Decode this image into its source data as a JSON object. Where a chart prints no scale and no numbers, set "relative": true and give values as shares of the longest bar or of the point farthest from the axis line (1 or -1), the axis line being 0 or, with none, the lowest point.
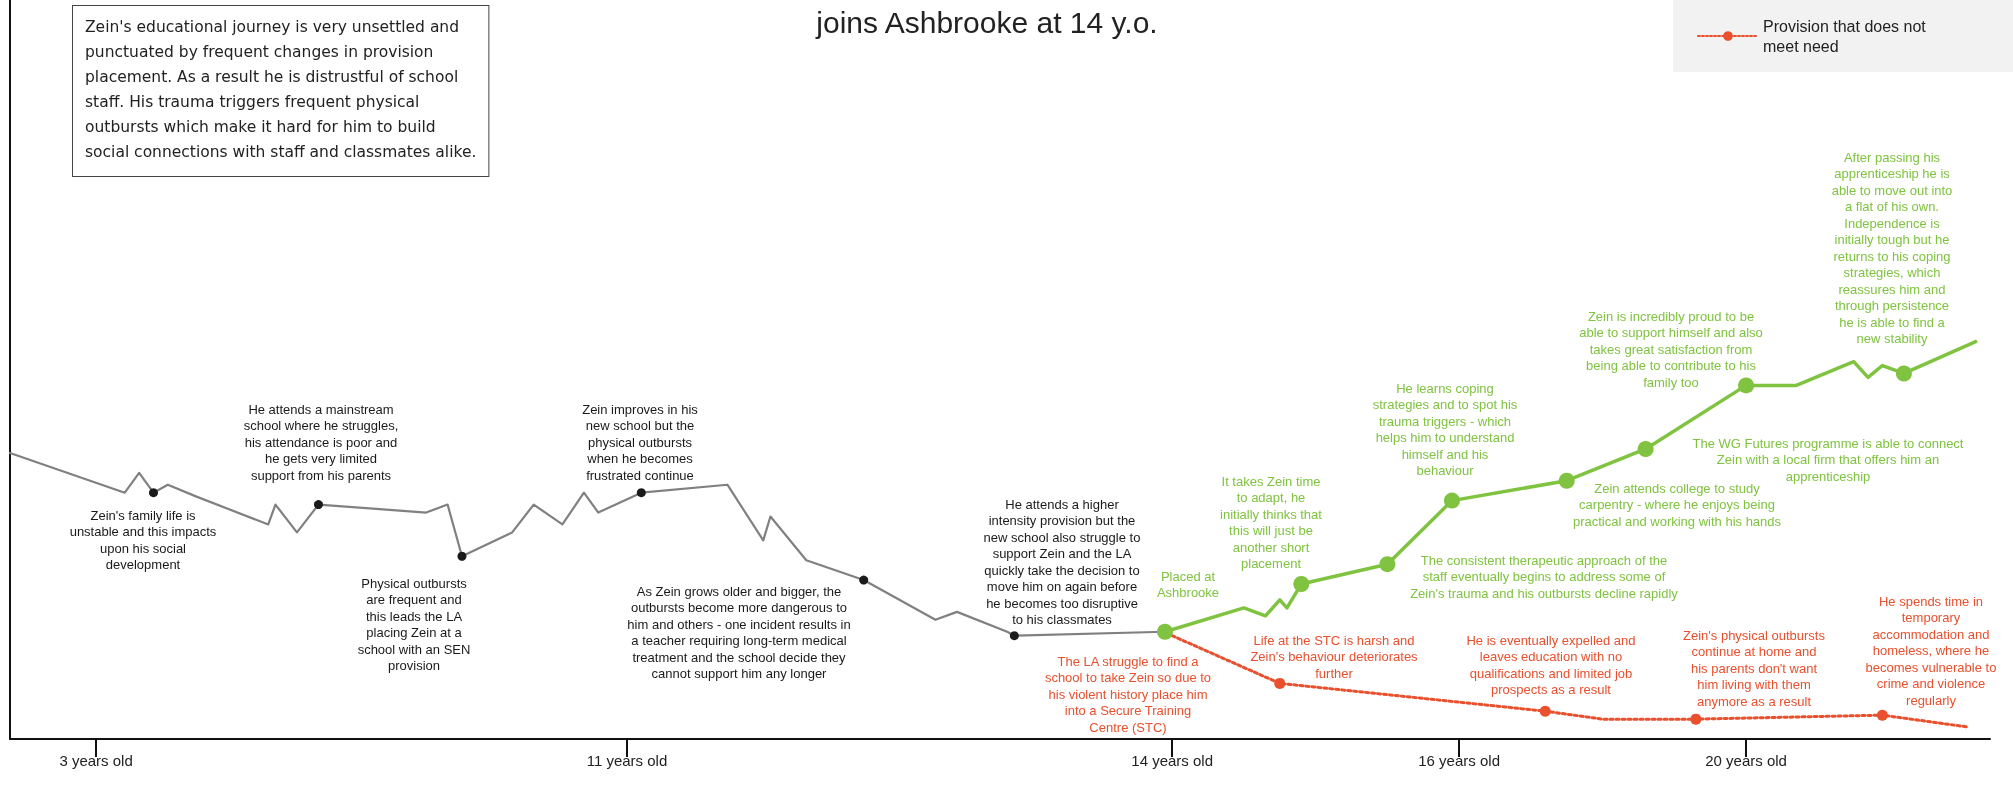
{
  "chart_data": {
    "type": "line",
    "title": "joins Ashbrooke at 14 y.o.",
    "relative": true,
    "legend": "top right",
    "marker": "none",
    "categories": [
      null,
      null,
      null,
      null,
      null,
      null,
      null,
      null,
      null,
      null,
      null,
      null,
      "3 years old",
      null,
      null,
      null,
      null,
      null,
      null,
      null,
      null,
      null,
      null,
      null,
      null,
      null,
      null,
      null,
      null,
      null,
      null,
      null,
      null,
      null,
      null,
      null,
      null,
      null,
      null,
      null,
      null,
      null,
      null,
      null,
      null,
      null,
      null,
      null,
      null,
      null,
      null,
      null,
      null,
      null,
      null,
      null,
      null,
      null,
      null,
      null,
      null,
      null,
      null,
      null,
      null,
      null,
      null,
      null,
      null,
      null,
      null,
      null,
      null,
      null,
      null,
      null,
      null,
      null,
      null,
      null,
      null,
      null,
      null,
      null,
      null,
      null,
      "11 years old",
      null,
      null,
      null,
      null,
      null,
      null,
      null,
      null,
      null,
      null,
      null,
      null,
      null,
      null,
      null,
      null,
      null,
      null,
      null,
      null,
      null,
      null,
      null,
      null,
      null,
      null,
      null,
      null,
      null,
      null,
      null,
      null,
      null,
      null,
      null,
      null,
      null,
      null,
      null,
      null,
      null,
      null,
      null,
      null,
      null,
      null,
      null,
      null,
      null,
      null,
      null,
      null,
      null,
      null,
      null,
      null,
      null,
      null,
      null,
      null,
      null,
      null,
      null,
      null,
      null,
      null,
      null,
      null,
      null,
      null,
      null,
      null,
      null,
      null,
      null,
      "14 years old",
      null,
      null,
      null,
      null,
      null,
      null,
      null,
      null,
      null,
      null,
      null,
      null,
      null,
      null,
      null,
      null,
      null,
      null,
      null,
      null,
      null,
      null,
      null,
      null,
      null,
      null,
      null,
      null,
      null,
      null,
      null,
      null,
      null,
      null,
      null,
      null,
      null,
      null,
      null,
      "16 years old",
      null,
      null,
      null,
      null,
      null,
      null,
      null,
      null,
      null,
      null,
      null,
      null,
      null,
      null,
      null,
      null,
      null,
      null,
      null,
      null,
      null,
      null,
      null,
      null,
      null,
      null,
      null,
      null,
      null,
      null,
      null,
      null,
      null,
      null,
      null,
      null,
      null,
      null,
      null,
      "20 years old",
      null,
      null,
      null,
      null,
      null,
      null,
      null,
      null,
      null,
      null,
      null,
      null,
      null,
      null,
      null,
      null,
      null,
      null,
      null,
      null,
      null,
      null,
      null,
      null,
      null,
      null,
      null,
      null,
      null,
      null,
      null,
      null,
      null,
      null
    ],
    "series": [
      {
        "color": "#808080",
        "line_style": "solid",
        "values": [
          0.72,
          null,
          null,
          null,
          null,
          null,
          null,
          null,
          null,
          null,
          null,
          null,
          null,
          null,
          null,
          null,
          0.62,
          null,
          0.67,
          null,
          0.62,
          null,
          0.64,
          null,
          null,
          null,
          0.61,
          null,
          null,
          null,
          null,
          null,
          null,
          null,
          null,
          null,
          0.54,
          0.59,
          null,
          null,
          0.52,
          null,
          null,
          0.59,
          null,
          null,
          null,
          null,
          null,
          null,
          null,
          null,
          null,
          null,
          null,
          null,
          null,
          null,
          0.57,
          null,
          null,
          0.59,
          null,
          0.46,
          null,
          null,
          null,
          null,
          null,
          null,
          0.52,
          null,
          null,
          0.59,
          null,
          null,
          null,
          0.54,
          null,
          null,
          0.62,
          null,
          0.57,
          null,
          null,
          null,
          null,
          null,
          0.62,
          null,
          null,
          null,
          null,
          null,
          null,
          null,
          null,
          null,
          null,
          null,
          0.64,
          null,
          null,
          null,
          null,
          0.5,
          0.56,
          null,
          null,
          null,
          null,
          0.45,
          null,
          null,
          null,
          null,
          null,
          null,
          null,
          0.4,
          null,
          null,
          null,
          null,
          null,
          null,
          null,
          null,
          null,
          0.3,
          null,
          null,
          0.32,
          null,
          null,
          null,
          null,
          null,
          null,
          0.27,
          0.26,
          null,
          null,
          null,
          null,
          null,
          null,
          null,
          null,
          null,
          null,
          null,
          null,
          null,
          null,
          null,
          null,
          null,
          null,
          null,
          null,
          0.27,
          null,
          null,
          null,
          null,
          null,
          null,
          null,
          null,
          null,
          null,
          null,
          null,
          null,
          null,
          null,
          null,
          null,
          null,
          null,
          null,
          null,
          null,
          null,
          null,
          null,
          null,
          null,
          null,
          null,
          null,
          null,
          null,
          null,
          null,
          null,
          null,
          null,
          null,
          null,
          null,
          null,
          null,
          null,
          null,
          null,
          null,
          null,
          null,
          null,
          null,
          null,
          null,
          null,
          null,
          null,
          null,
          null,
          null,
          null,
          null,
          null,
          null,
          null,
          null,
          null,
          null,
          null,
          null,
          null,
          null,
          null,
          null,
          null,
          null,
          null,
          null,
          null,
          null,
          null,
          null,
          null,
          null,
          null,
          null,
          null,
          null,
          null,
          null,
          null,
          null,
          null,
          null,
          null,
          null,
          null,
          null,
          null,
          null,
          null,
          null,
          null,
          null,
          null,
          null,
          null,
          null,
          null,
          null,
          null,
          null,
          null,
          null,
          null,
          null,
          null
        ]
      },
      {
        "name": "Provision that does not meet need",
        "color": "#e8502e",
        "line_style": "dotted",
        "values": [
          null,
          null,
          null,
          null,
          null,
          null,
          null,
          null,
          null,
          null,
          null,
          null,
          null,
          null,
          null,
          null,
          null,
          null,
          null,
          null,
          null,
          null,
          null,
          null,
          null,
          null,
          null,
          null,
          null,
          null,
          null,
          null,
          null,
          null,
          null,
          null,
          null,
          null,
          null,
          null,
          null,
          null,
          null,
          null,
          null,
          null,
          null,
          null,
          null,
          null,
          null,
          null,
          null,
          null,
          null,
          null,
          null,
          null,
          null,
          null,
          null,
          null,
          null,
          null,
          null,
          null,
          null,
          null,
          null,
          null,
          null,
          null,
          null,
          null,
          null,
          null,
          null,
          null,
          null,
          null,
          null,
          null,
          null,
          null,
          null,
          null,
          null,
          null,
          null,
          null,
          null,
          null,
          null,
          null,
          null,
          null,
          null,
          null,
          null,
          null,
          null,
          null,
          null,
          null,
          null,
          null,
          null,
          null,
          null,
          null,
          null,
          null,
          null,
          null,
          null,
          null,
          null,
          null,
          null,
          null,
          null,
          null,
          null,
          null,
          null,
          null,
          null,
          null,
          null,
          null,
          null,
          null,
          null,
          null,
          null,
          null,
          null,
          null,
          null,
          null,
          null,
          null,
          null,
          null,
          null,
          null,
          null,
          null,
          null,
          null,
          null,
          null,
          null,
          null,
          null,
          null,
          null,
          null,
          null,
          null,
          null,
          null,
          0.26,
          null,
          null,
          null,
          null,
          null,
          null,
          null,
          null,
          null,
          null,
          null,
          null,
          null,
          null,
          0.14,
          null,
          null,
          null,
          null,
          null,
          null,
          null,
          null,
          null,
          null,
          null,
          null,
          null,
          null,
          null,
          null,
          null,
          null,
          null,
          null,
          null,
          null,
          null,
          null,
          null,
          null,
          null,
          null,
          null,
          null,
          null,
          null,
          null,
          null,
          null,
          null,
          0.07,
          null,
          null,
          null,
          null,
          null,
          null,
          null,
          0.05,
          null,
          null,
          null,
          null,
          null,
          null,
          null,
          null,
          null,
          null,
          null,
          null,
          0.05,
          null,
          null,
          null,
          null,
          null,
          null,
          null,
          null,
          null,
          null,
          null,
          null,
          null,
          null,
          null,
          null,
          null,
          null,
          null,
          null,
          null,
          null,
          null,
          null,
          null,
          0.06,
          null,
          null,
          null,
          null,
          null,
          null,
          null,
          null,
          null,
          null,
          null,
          0.03,
          null,
          null,
          null
        ]
      },
      {
        "color": "#80c341",
        "line_style": "solid",
        "values": [
          null,
          null,
          null,
          null,
          null,
          null,
          null,
          null,
          null,
          null,
          null,
          null,
          null,
          null,
          null,
          null,
          null,
          null,
          null,
          null,
          null,
          null,
          null,
          null,
          null,
          null,
          null,
          null,
          null,
          null,
          null,
          null,
          null,
          null,
          null,
          null,
          null,
          null,
          null,
          null,
          null,
          null,
          null,
          null,
          null,
          null,
          null,
          null,
          null,
          null,
          null,
          null,
          null,
          null,
          null,
          null,
          null,
          null,
          null,
          null,
          null,
          null,
          null,
          null,
          null,
          null,
          null,
          null,
          null,
          null,
          null,
          null,
          null,
          null,
          null,
          null,
          null,
          null,
          null,
          null,
          null,
          null,
          null,
          null,
          null,
          null,
          null,
          null,
          null,
          null,
          null,
          null,
          null,
          null,
          null,
          null,
          null,
          null,
          null,
          null,
          null,
          null,
          null,
          null,
          null,
          null,
          null,
          null,
          null,
          null,
          null,
          null,
          null,
          null,
          null,
          null,
          null,
          null,
          null,
          null,
          null,
          null,
          null,
          null,
          null,
          null,
          null,
          null,
          null,
          null,
          null,
          null,
          null,
          null,
          null,
          null,
          null,
          null,
          null,
          null,
          null,
          null,
          null,
          null,
          null,
          null,
          null,
          null,
          null,
          null,
          null,
          null,
          null,
          null,
          null,
          null,
          null,
          null,
          null,
          null,
          null,
          0.27,
          null,
          null,
          null,
          null,
          null,
          null,
          null,
          null,
          null,
          null,
          0.33,
          null,
          null,
          0.31,
          null,
          0.35,
          0.33,
          null,
          0.39,
          null,
          null,
          null,
          null,
          null,
          null,
          null,
          null,
          null,
          null,
          null,
          0.44,
          null,
          null,
          null,
          null,
          null,
          null,
          null,
          null,
          0.6,
          null,
          null,
          null,
          null,
          null,
          null,
          null,
          null,
          null,
          null,
          null,
          null,
          null,
          null,
          null,
          0.65,
          null,
          null,
          null,
          null,
          null,
          null,
          null,
          null,
          null,
          null,
          0.73,
          null,
          null,
          null,
          null,
          null,
          null,
          null,
          null,
          null,
          null,
          null,
          null,
          null,
          0.89,
          null,
          null,
          null,
          null,
          null,
          null,
          0.89,
          null,
          null,
          null,
          null,
          null,
          null,
          null,
          0.95,
          null,
          0.91,
          null,
          0.94,
          null,
          null,
          0.92,
          null,
          null,
          null,
          null,
          null,
          null,
          null,
          null,
          null,
          1.0,
          null,
          null
        ]
      },
      {
        "type": "scatter",
        "marker": "circle",
        "color": "#1a1a1a",
        "values": [
          null,
          null,
          null,
          null,
          null,
          null,
          null,
          null,
          null,
          null,
          null,
          null,
          null,
          null,
          null,
          null,
          null,
          null,
          null,
          null,
          0.62,
          null,
          null,
          null,
          null,
          null,
          null,
          null,
          null,
          null,
          null,
          null,
          null,
          null,
          null,
          null,
          null,
          null,
          null,
          null,
          null,
          null,
          null,
          0.59,
          null,
          null,
          null,
          null,
          null,
          null,
          null,
          null,
          null,
          null,
          null,
          null,
          null,
          null,
          null,
          null,
          null,
          null,
          null,
          0.46,
          null,
          null,
          null,
          null,
          null,
          null,
          null,
          null,
          null,
          null,
          null,
          null,
          null,
          null,
          null,
          null,
          null,
          null,
          null,
          null,
          null,
          null,
          null,
          null,
          0.62,
          null,
          null,
          null,
          null,
          null,
          null,
          null,
          null,
          null,
          null,
          null,
          null,
          null,
          null,
          null,
          null,
          null,
          null,
          null,
          null,
          null,
          null,
          null,
          null,
          null,
          null,
          null,
          null,
          null,
          null,
          0.4,
          null,
          null,
          null,
          null,
          null,
          null,
          null,
          null,
          null,
          null,
          null,
          null,
          null,
          null,
          null,
          null,
          null,
          null,
          null,
          null,
          0.26,
          null,
          null,
          null,
          null,
          null,
          null,
          null,
          null,
          null,
          null,
          null,
          null,
          null,
          null,
          null,
          null,
          null,
          null,
          null,
          null,
          null,
          null,
          null,
          null,
          null,
          null,
          null,
          null,
          null,
          null,
          null,
          null,
          null,
          null,
          null,
          null,
          null,
          null,
          null,
          null,
          null,
          null,
          null,
          null,
          null,
          null,
          null,
          null,
          null,
          null,
          null,
          null,
          null,
          null,
          null,
          null,
          null,
          null,
          null,
          null,
          null,
          null,
          null,
          null,
          null,
          null,
          null,
          null,
          null,
          null,
          null,
          null,
          null,
          null,
          null,
          null,
          null,
          null,
          null,
          null,
          null,
          null,
          null,
          null,
          null,
          null,
          null,
          null,
          null,
          null,
          null,
          null,
          null,
          null,
          null,
          null,
          null,
          null,
          null,
          null,
          null,
          null,
          null,
          null,
          null,
          null,
          null,
          null,
          null,
          null,
          null,
          null,
          null,
          null,
          null,
          null,
          null,
          null,
          null,
          null,
          null,
          null,
          null,
          null,
          null,
          null,
          null,
          null,
          null,
          null,
          null,
          null,
          null,
          null,
          null,
          null
        ]
      },
      {
        "type": "scatter",
        "marker": "circle",
        "color": "#e8502e",
        "values": [
          null,
          null,
          null,
          null,
          null,
          null,
          null,
          null,
          null,
          null,
          null,
          null,
          null,
          null,
          null,
          null,
          null,
          null,
          null,
          null,
          null,
          null,
          null,
          null,
          null,
          null,
          null,
          null,
          null,
          null,
          null,
          null,
          null,
          null,
          null,
          null,
          null,
          null,
          null,
          null,
          null,
          null,
          null,
          null,
          null,
          null,
          null,
          null,
          null,
          null,
          null,
          null,
          null,
          null,
          null,
          null,
          null,
          null,
          null,
          null,
          null,
          null,
          null,
          null,
          null,
          null,
          null,
          null,
          null,
          null,
          null,
          null,
          null,
          null,
          null,
          null,
          null,
          null,
          null,
          null,
          null,
          null,
          null,
          null,
          null,
          null,
          null,
          null,
          null,
          null,
          null,
          null,
          null,
          null,
          null,
          null,
          null,
          null,
          null,
          null,
          null,
          null,
          null,
          null,
          null,
          null,
          null,
          null,
          null,
          null,
          null,
          null,
          null,
          null,
          null,
          null,
          null,
          null,
          null,
          null,
          null,
          null,
          null,
          null,
          null,
          null,
          null,
          null,
          null,
          null,
          null,
          null,
          null,
          null,
          null,
          null,
          null,
          null,
          null,
          null,
          null,
          null,
          null,
          null,
          null,
          null,
          null,
          null,
          null,
          null,
          null,
          null,
          null,
          null,
          null,
          null,
          null,
          null,
          null,
          null,
          null,
          null,
          null,
          null,
          null,
          null,
          null,
          null,
          null,
          null,
          null,
          null,
          null,
          null,
          null,
          null,
          null,
          0.14,
          null,
          null,
          null,
          null,
          null,
          null,
          null,
          null,
          null,
          null,
          null,
          null,
          null,
          null,
          null,
          null,
          null,
          null,
          null,
          null,
          null,
          null,
          null,
          null,
          null,
          null,
          null,
          null,
          null,
          null,
          null,
          null,
          null,
          null,
          null,
          null,
          0.07,
          null,
          null,
          null,
          null,
          null,
          null,
          null,
          null,
          null,
          null,
          null,
          null,
          null,
          null,
          null,
          null,
          null,
          null,
          null,
          null,
          0.05,
          null,
          null,
          null,
          null,
          null,
          null,
          null,
          null,
          null,
          null,
          null,
          null,
          null,
          null,
          null,
          null,
          null,
          null,
          null,
          null,
          null,
          null,
          null,
          null,
          null,
          0.06,
          null,
          null,
          null,
          null,
          null,
          null,
          null,
          null,
          null,
          null,
          null,
          null,
          null,
          null,
          null
        ]
      },
      {
        "type": "scatter",
        "marker": "circle",
        "color": "#80c341",
        "values": [
          null,
          null,
          null,
          null,
          null,
          null,
          null,
          null,
          null,
          null,
          null,
          null,
          null,
          null,
          null,
          null,
          null,
          null,
          null,
          null,
          null,
          null,
          null,
          null,
          null,
          null,
          null,
          null,
          null,
          null,
          null,
          null,
          null,
          null,
          null,
          null,
          null,
          null,
          null,
          null,
          null,
          null,
          null,
          null,
          null,
          null,
          null,
          null,
          null,
          null,
          null,
          null,
          null,
          null,
          null,
          null,
          null,
          null,
          null,
          null,
          null,
          null,
          null,
          null,
          null,
          null,
          null,
          null,
          null,
          null,
          null,
          null,
          null,
          null,
          null,
          null,
          null,
          null,
          null,
          null,
          null,
          null,
          null,
          null,
          null,
          null,
          null,
          null,
          null,
          null,
          null,
          null,
          null,
          null,
          null,
          null,
          null,
          null,
          null,
          null,
          null,
          null,
          null,
          null,
          null,
          null,
          null,
          null,
          null,
          null,
          null,
          null,
          null,
          null,
          null,
          null,
          null,
          null,
          null,
          null,
          null,
          null,
          null,
          null,
          null,
          null,
          null,
          null,
          null,
          null,
          null,
          null,
          null,
          null,
          null,
          null,
          null,
          null,
          null,
          null,
          null,
          null,
          null,
          null,
          null,
          null,
          null,
          null,
          null,
          null,
          null,
          null,
          null,
          null,
          null,
          null,
          null,
          null,
          null,
          null,
          null,
          0.27,
          null,
          null,
          null,
          null,
          null,
          null,
          null,
          null,
          null,
          null,
          null,
          null,
          null,
          null,
          null,
          null,
          null,
          null,
          0.39,
          null,
          null,
          null,
          null,
          null,
          null,
          null,
          null,
          null,
          null,
          null,
          0.44,
          null,
          null,
          null,
          null,
          null,
          null,
          null,
          null,
          0.6,
          null,
          null,
          null,
          null,
          null,
          null,
          null,
          null,
          null,
          null,
          null,
          null,
          null,
          null,
          null,
          0.65,
          null,
          null,
          null,
          null,
          null,
          null,
          null,
          null,
          null,
          null,
          0.73,
          null,
          null,
          null,
          null,
          null,
          null,
          null,
          null,
          null,
          null,
          null,
          null,
          null,
          0.89,
          null,
          null,
          null,
          null,
          null,
          null,
          null,
          null,
          null,
          null,
          null,
          null,
          null,
          null,
          null,
          null,
          null,
          null,
          null,
          null,
          null,
          0.92,
          null,
          null,
          null,
          null,
          null,
          null,
          null,
          null,
          null,
          null,
          null,
          null
        ]
      }
    ],
    "annotations": [
      "Zein's educational journey is very unsettled and\npunctuated by frequent changes in provision\nplacement. As a result he is distrustful of school\nstaff. His trauma triggers frequent physical\noutbursts which make it hard for him to build\nsocial connections with staff and classmates alike.",
      "Zein's family life is\nunstable and this impacts\nupon his social\ndevelopment",
      "He attends a mainstream\nschool where he struggles,\nhis attendance is poor and\nhe gets very limited\nsupport from his parents",
      "Physical outbursts\nare frequent and\nthis leads the LA\nplacing Zein at a\nschool with an SEN\nprovision",
      "Zein improves in his\nnew school but the\nphysical outbursts\nwhen he becomes\nfrustrated continue",
      "As Zein grows older and bigger, the\noutbursts become more dangerous to\nhim and others - one incident results in\na teacher requiring long-term medical\ntreatment and the school decide they\ncannot support him any longer",
      "He attends a higher\nintensity provision but the\nnew school also struggle to\nsupport Zein and the LA\nquickly take the decision to\nmove him on again before\nhe becomes too disruptive\nto his classmates",
      "Placed at\nAshbrooke",
      "It takes Zein time\nto adapt, he\ninitially thinks that\nthis will just be\nanother short\nplacement",
      "The consistent therapeutic approach of the\nstaff eventually begins to address some of\nZein's trauma and his outbursts decline rapidly",
      "He learns coping\nstrategies and to spot his\ntrauma triggers - which\nhelps him to understand\nhimself and his\nbehaviour",
      "Zein attends college to study\ncarpentry - where he enjoys being\npractical and working with his hands",
      "The WG Futures programme is able to connect\nZein with a local firm that offers him an\napprenticeship",
      "Zein is incredibly proud to be\nable to support himself and also\ntakes great satisfaction from\nbeing able to contribute to his\nfamily too",
      "After passing his\napprenticeship he is\nable to move out into\na flat of his own.\nIndependence is\ninitially tough but he\nreturns to his coping\nstrategies, which\nreassures him and\nthrough persistence\nhe is able to find a\nnew stability",
      "The LA struggle to find a\nschool to take Zein so due to\nhis violent history place him\ninto a Secure Training\nCentre (STC)",
      "Life at the STC is harsh and\nZein's behaviour deteriorates\nfurther",
      "He is eventually expelled and\nleaves education with no\nqualifications and limited job\nprospects as a result",
      "Zein's physical outbursts\ncontinue at home and\nhis parents don't want\nhim living with them\nanymore as a result",
      "He spends time in\ntemporary\naccommodation and\nhomeless, where he\nbecomes vulnerable to\ncrime and violence\nregularly"
    ]
  }
}
